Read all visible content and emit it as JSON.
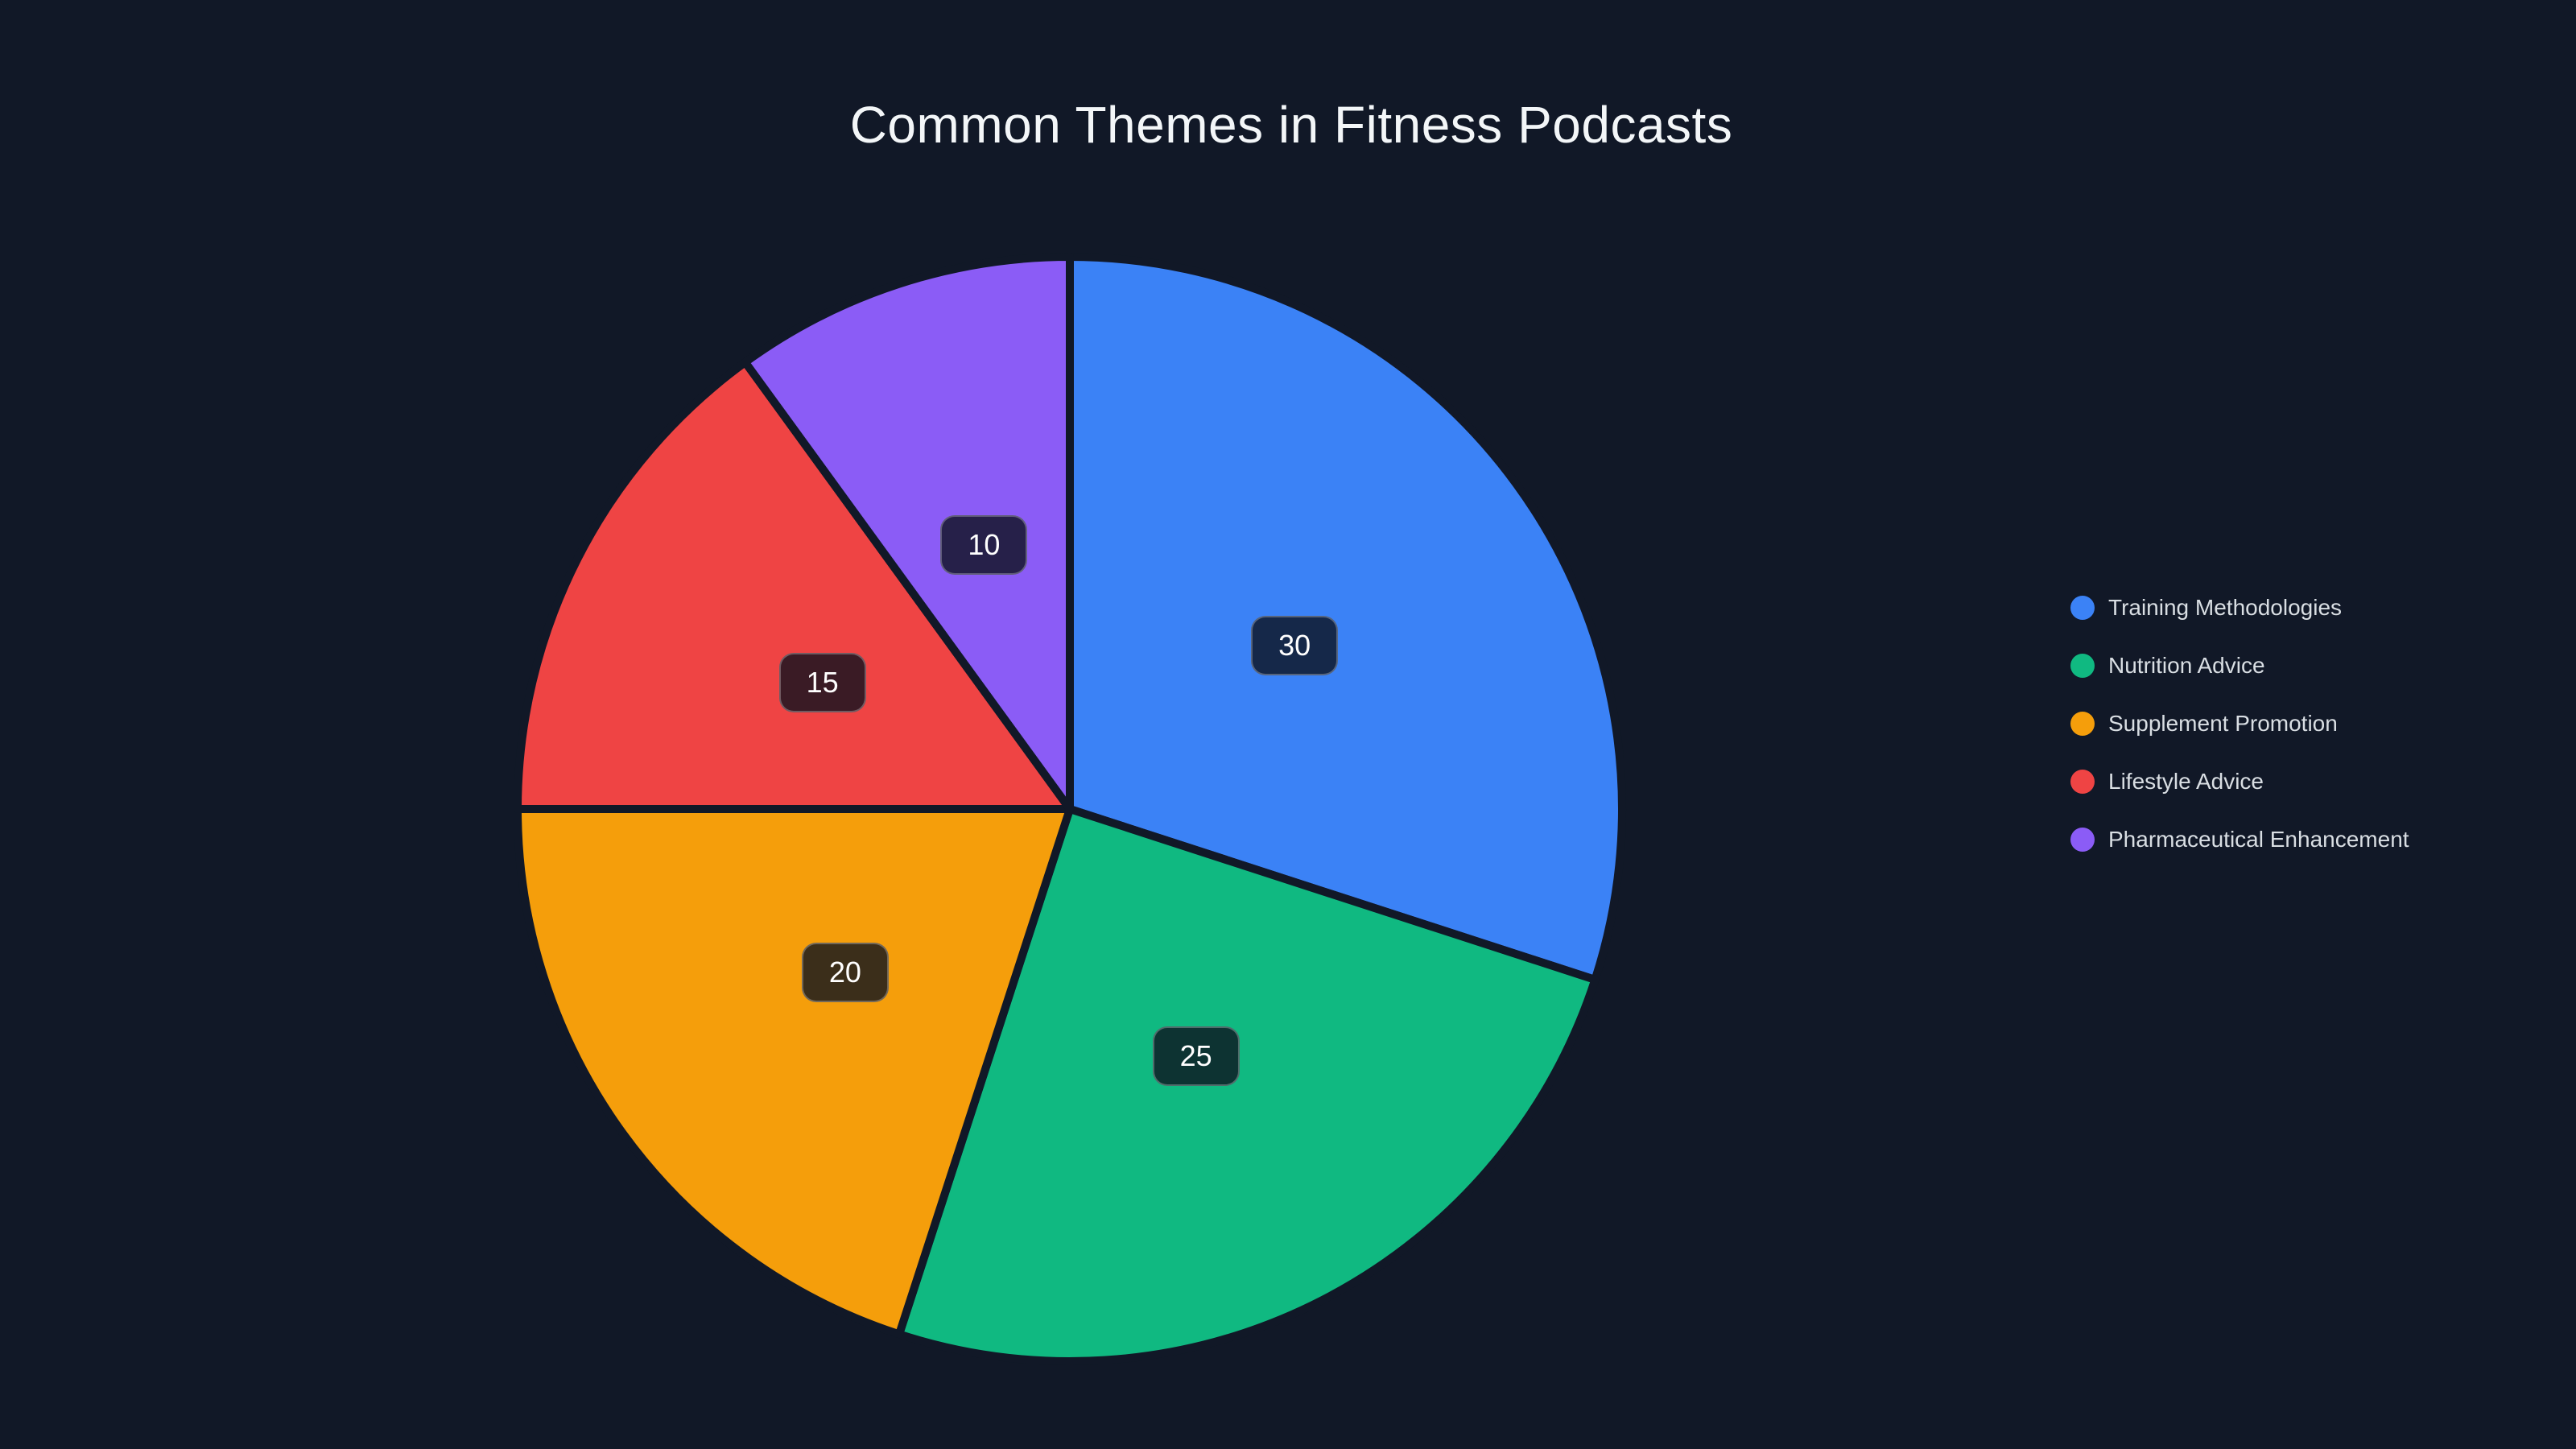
{
  "page": {
    "background_color": "#111827",
    "title_color": "#f3f6f8",
    "legend_text_color": "#d9dee3",
    "value_label_text_color": "#ffffff",
    "value_label_background": "rgba(13,18,30,0.80)"
  },
  "chart_data": {
    "type": "pie",
    "title": "Common Themes in Fitness Podcasts",
    "slices": [
      {
        "label": "Training Methodologies",
        "value": 30,
        "color": "#3b82f6"
      },
      {
        "label": "Nutrition Advice",
        "value": 25,
        "color": "#10b981"
      },
      {
        "label": "Supplement Promotion",
        "value": 20,
        "color": "#f59e0b"
      },
      {
        "label": "Lifestyle Advice",
        "value": 15,
        "color": "#ef4444"
      },
      {
        "label": "Pharmaceutical Enhancement",
        "value": 10,
        "color": "#8b5cf6"
      }
    ],
    "total": 100,
    "start_angle": "12-oclock",
    "direction": "clockwise",
    "value_labels_shown": true,
    "legend_position": "right",
    "grid": false
  }
}
